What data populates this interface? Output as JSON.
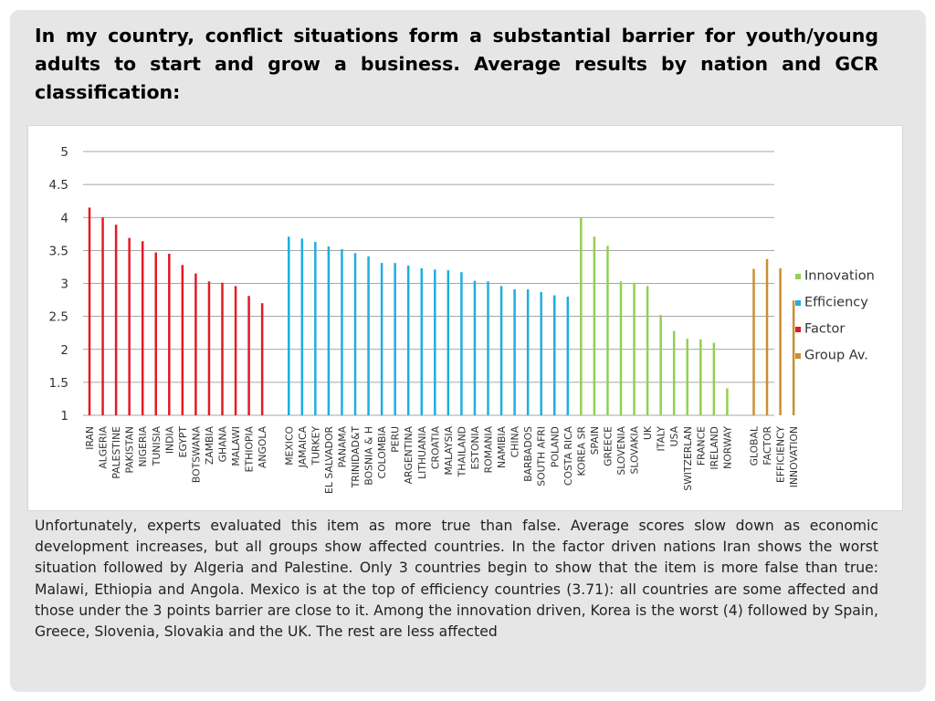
{
  "slide": {
    "title": "In my country, conflict situations form a substantial barrier for youth/young adults to start and grow a business. Average results by nation and GCR classification:",
    "body": "Unfortunately, experts evaluated this item as more true than false. Average scores slow down as economic development increases, but all groups show affected countries. In the factor driven nations Iran shows the worst situation followed by Algeria and Palestine. Only 3 countries begin to show that the item is more false than true: Malawi, Ethiopia and Angola. Mexico is at the top of efficiency countries (3.71): all countries are some affected and those under the 3 points barrier are close to it. Among the innovation driven, Korea is the worst (4) followed by Spain, Greece, Slovenia, Slovakia and the UK. The rest are less affected"
  },
  "chart_data": {
    "type": "bar",
    "title": "",
    "xlabel": "",
    "ylabel": "",
    "ylim": [
      1,
      5
    ],
    "yticks": [
      "1",
      "1.5",
      "2",
      "2.5",
      "3",
      "3.5",
      "4",
      "4.5",
      "5"
    ],
    "grid": true,
    "legend_position": "right",
    "categories": [
      "IRAN",
      "ALGERIA",
      "PALESTINE",
      "PAKISTAN",
      "NIGERIA",
      "TUNISIA",
      "INDIA",
      "EGYPT",
      "BOTSWANA",
      "ZAMBIA",
      "GHANA",
      "MALAWI",
      "ETHIOPIA",
      "ANGOLA",
      "",
      "MEXICO",
      "JAMAICA",
      "TURKEY",
      "EL SALVADOR",
      "PANAMA",
      "TRINIDAD&T",
      "BOSNIA & H",
      "COLOMBIA",
      "PERU",
      "ARGENTINA",
      "LITHUANIA",
      "CROATIA",
      "MALAYSIA",
      "THAILAND",
      "ESTONIA",
      "ROMANIA",
      "NAMIBIA",
      "CHINA",
      "BARBADOS",
      "SOUTH AFRI",
      "POLAND",
      "COSTA RICA",
      "KOREA SR",
      "SPAIN",
      "GREECE",
      "SLOVENIA",
      "SLOVAKIA",
      "UK",
      "ITALY",
      "USA",
      "SWITZERLAN",
      "FRANCE",
      "IRELAND",
      "NORWAY",
      "",
      "GLOBAL",
      "FACTOR",
      "EFFICIENCY",
      "INNOVATION"
    ],
    "groups": [
      "factor",
      "factor",
      "factor",
      "factor",
      "factor",
      "factor",
      "factor",
      "factor",
      "factor",
      "factor",
      "factor",
      "factor",
      "factor",
      "factor",
      "gap",
      "efficiency",
      "efficiency",
      "efficiency",
      "efficiency",
      "efficiency",
      "efficiency",
      "efficiency",
      "efficiency",
      "efficiency",
      "efficiency",
      "efficiency",
      "efficiency",
      "efficiency",
      "efficiency",
      "efficiency",
      "efficiency",
      "efficiency",
      "efficiency",
      "efficiency",
      "efficiency",
      "efficiency",
      "efficiency",
      "innovation",
      "innovation",
      "innovation",
      "innovation",
      "innovation",
      "innovation",
      "innovation",
      "innovation",
      "innovation",
      "innovation",
      "innovation",
      "innovation",
      "gap",
      "groupav",
      "groupav",
      "groupav",
      "groupav"
    ],
    "values": [
      4.15,
      4.0,
      3.89,
      3.69,
      3.64,
      3.47,
      3.45,
      3.28,
      3.15,
      3.03,
      3.01,
      2.96,
      2.81,
      2.7,
      null,
      3.71,
      3.68,
      3.63,
      3.56,
      3.52,
      3.46,
      3.41,
      3.31,
      3.31,
      3.27,
      3.23,
      3.21,
      3.2,
      3.17,
      3.04,
      3.03,
      2.96,
      2.91,
      2.91,
      2.87,
      2.82,
      2.8,
      4.0,
      3.71,
      3.57,
      3.03,
      3.01,
      2.96,
      2.52,
      2.28,
      2.16,
      2.15,
      2.1,
      1.41,
      null,
      3.22,
      3.37,
      3.23,
      2.74
    ],
    "series": [
      {
        "key": "innovation",
        "name": "Innovation",
        "color": "#92d050"
      },
      {
        "key": "efficiency",
        "name": "Efficiency",
        "color": "#1faee0"
      },
      {
        "key": "factor",
        "name": "Factor",
        "color": "#e31b23"
      },
      {
        "key": "groupav",
        "name": "Group Av.",
        "color": "#c8902f"
      }
    ],
    "colors": {
      "grid": "#8a8a8a",
      "text": "#333333"
    }
  }
}
